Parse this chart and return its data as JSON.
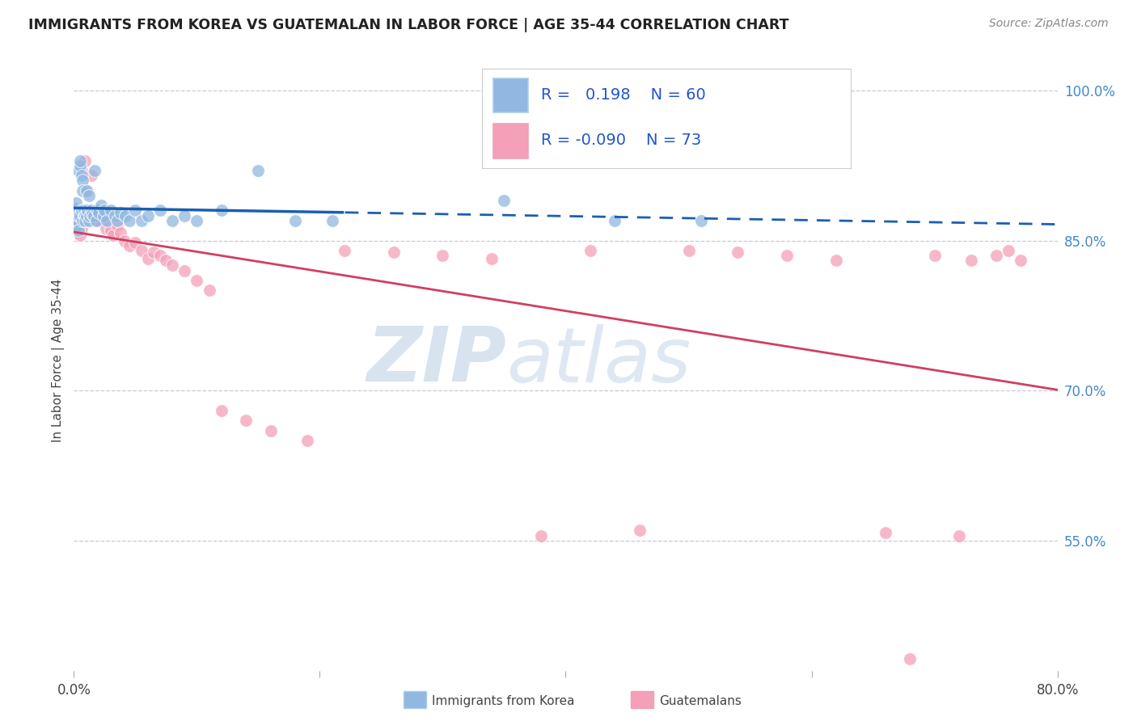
{
  "title": "IMMIGRANTS FROM KOREA VS GUATEMALAN IN LABOR FORCE | AGE 35-44 CORRELATION CHART",
  "source": "Source: ZipAtlas.com",
  "ylabel": "In Labor Force | Age 35-44",
  "xlim": [
    0.0,
    0.8
  ],
  "ylim": [
    0.42,
    1.04
  ],
  "ytick_labels": [
    "55.0%",
    "70.0%",
    "85.0%",
    "100.0%"
  ],
  "ytick_vals": [
    0.55,
    0.7,
    0.85,
    1.0
  ],
  "korea_color": "#90b8e0",
  "guatemala_color": "#f4a0b8",
  "korea_trend_color": "#1a5fb0",
  "guatemala_trend_color": "#d04060",
  "background_color": "#ffffff",
  "grid_color": "#c8c8d8",
  "watermark_text": "ZIPatlas",
  "korea_R": 0.198,
  "korea_N": 60,
  "guatemala_R": -0.09,
  "guatemala_N": 73,
  "korea_x": [
    0.001,
    0.001,
    0.002,
    0.002,
    0.002,
    0.003,
    0.003,
    0.003,
    0.004,
    0.004,
    0.004,
    0.005,
    0.005,
    0.005,
    0.006,
    0.006,
    0.007,
    0.007,
    0.007,
    0.008,
    0.008,
    0.009,
    0.009,
    0.01,
    0.01,
    0.011,
    0.012,
    0.012,
    0.013,
    0.014,
    0.015,
    0.016,
    0.017,
    0.018,
    0.019,
    0.02,
    0.022,
    0.024,
    0.025,
    0.027,
    0.03,
    0.033,
    0.035,
    0.038,
    0.042,
    0.045,
    0.05,
    0.055,
    0.06,
    0.07,
    0.08,
    0.09,
    0.1,
    0.12,
    0.15,
    0.18,
    0.21,
    0.35,
    0.44,
    0.51
  ],
  "korea_y": [
    0.88,
    0.875,
    0.882,
    0.87,
    0.888,
    0.865,
    0.878,
    0.87,
    0.86,
    0.875,
    0.92,
    0.925,
    0.93,
    0.875,
    0.88,
    0.915,
    0.91,
    0.9,
    0.87,
    0.875,
    0.88,
    0.875,
    0.87,
    0.9,
    0.875,
    0.88,
    0.87,
    0.895,
    0.875,
    0.88,
    0.876,
    0.875,
    0.92,
    0.87,
    0.88,
    0.878,
    0.885,
    0.875,
    0.88,
    0.87,
    0.88,
    0.875,
    0.87,
    0.878,
    0.875,
    0.87,
    0.88,
    0.87,
    0.875,
    0.88,
    0.87,
    0.875,
    0.87,
    0.88,
    0.92,
    0.87,
    0.87,
    0.89,
    0.87,
    0.87
  ],
  "guatemala_x": [
    0.001,
    0.001,
    0.002,
    0.002,
    0.003,
    0.003,
    0.004,
    0.004,
    0.005,
    0.005,
    0.006,
    0.006,
    0.007,
    0.007,
    0.008,
    0.008,
    0.009,
    0.009,
    0.01,
    0.01,
    0.011,
    0.012,
    0.013,
    0.014,
    0.015,
    0.016,
    0.017,
    0.018,
    0.019,
    0.02,
    0.022,
    0.024,
    0.026,
    0.028,
    0.03,
    0.032,
    0.035,
    0.038,
    0.041,
    0.045,
    0.05,
    0.055,
    0.06,
    0.065,
    0.07,
    0.075,
    0.08,
    0.09,
    0.1,
    0.11,
    0.12,
    0.14,
    0.16,
    0.19,
    0.22,
    0.26,
    0.3,
    0.34,
    0.38,
    0.42,
    0.46,
    0.5,
    0.54,
    0.58,
    0.62,
    0.66,
    0.68,
    0.7,
    0.72,
    0.73,
    0.75,
    0.76,
    0.77
  ],
  "guatemala_y": [
    0.875,
    0.88,
    0.865,
    0.875,
    0.862,
    0.878,
    0.858,
    0.87,
    0.855,
    0.875,
    0.92,
    0.862,
    0.87,
    0.875,
    0.88,
    0.87,
    0.93,
    0.875,
    0.87,
    0.875,
    0.9,
    0.87,
    0.875,
    0.915,
    0.87,
    0.875,
    0.88,
    0.87,
    0.875,
    0.87,
    0.88,
    0.875,
    0.862,
    0.87,
    0.86,
    0.855,
    0.865,
    0.858,
    0.85,
    0.845,
    0.848,
    0.84,
    0.832,
    0.838,
    0.835,
    0.83,
    0.825,
    0.82,
    0.81,
    0.8,
    0.68,
    0.67,
    0.66,
    0.65,
    0.84,
    0.838,
    0.835,
    0.832,
    0.555,
    0.84,
    0.56,
    0.84,
    0.838,
    0.835,
    0.83,
    0.558,
    0.432,
    0.835,
    0.555,
    0.83,
    0.835,
    0.84,
    0.83
  ]
}
